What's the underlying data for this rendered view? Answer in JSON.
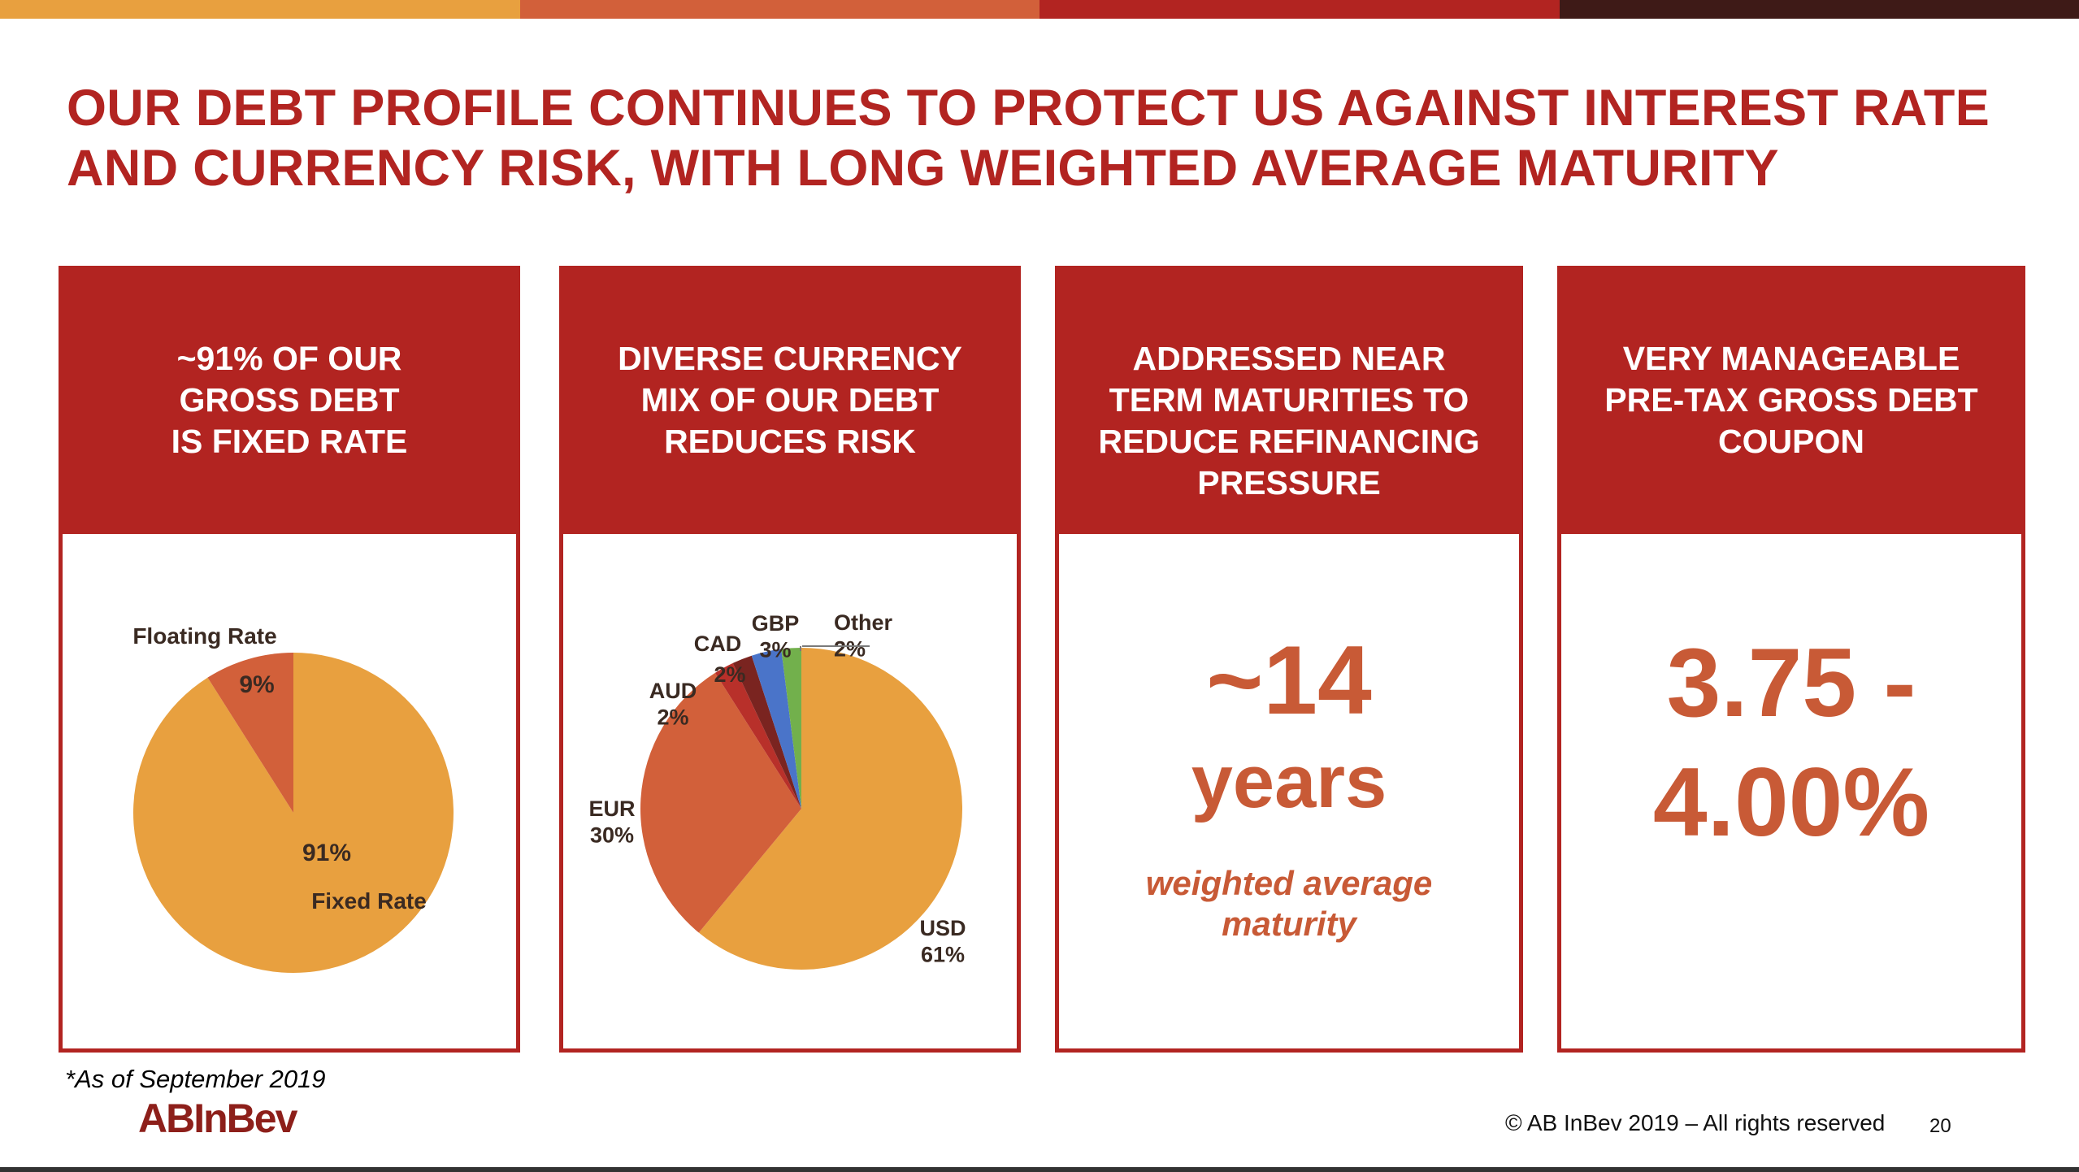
{
  "colors": {
    "topbar": [
      "#e8a03f",
      "#d2603a",
      "#b22421",
      "#3e1a17"
    ],
    "brand_red": "#b22421",
    "accent_orange": "#c85a36"
  },
  "title": "OUR DEBT PROFILE CONTINUES TO PROTECT US AGAINST INTEREST RATE\nAND CURRENCY RISK, WITH LONG WEIGHTED AVERAGE MATURITY",
  "panels": [
    {
      "heading": "~91% OF OUR\nGROSS DEBT\nIS FIXED RATE"
    },
    {
      "heading": "DIVERSE CURRENCY\nMIX OF OUR DEBT\nREDUCES RISK"
    },
    {
      "heading": "ADDRESSED NEAR\nTERM MATURITIES TO\nREDUCE REFINANCING\nPRESSURE",
      "value": "~14",
      "unit": "years",
      "caption": "weighted average\nmaturity"
    },
    {
      "heading": "VERY MANAGEABLE\nPRE-TAX GROSS DEBT\nCOUPON",
      "value_line1": "3.75 -",
      "value_line2": "4.00%"
    }
  ],
  "chart_data": [
    {
      "type": "pie",
      "slices": [
        {
          "label": "Fixed Rate",
          "value": 91,
          "pct_label": "91%",
          "color": "#e8a03f"
        },
        {
          "label": "Floating Rate",
          "value": 9,
          "pct_label": "9%",
          "color": "#d2603a"
        }
      ]
    },
    {
      "type": "pie",
      "slices": [
        {
          "label": "USD",
          "value": 61,
          "pct_label": "61%",
          "color": "#e8a03f"
        },
        {
          "label": "EUR",
          "value": 30,
          "pct_label": "30%",
          "color": "#d2603a"
        },
        {
          "label": "AUD",
          "value": 2,
          "pct_label": "2%",
          "color": "#b8302a"
        },
        {
          "label": "CAD",
          "value": 2,
          "pct_label": "2%",
          "color": "#7a2420"
        },
        {
          "label": "GBP",
          "value": 3,
          "pct_label": "3%",
          "color": "#4a74c9"
        },
        {
          "label": "Other",
          "value": 2,
          "pct_label": "2%",
          "color": "#72b04c"
        }
      ]
    }
  ],
  "footnote": "*As of September 2019",
  "logo": {
    "part1": "AB",
    "part2": "InBev"
  },
  "copyright": "© AB InBev 2019 – All rights reserved",
  "page_number": "20"
}
